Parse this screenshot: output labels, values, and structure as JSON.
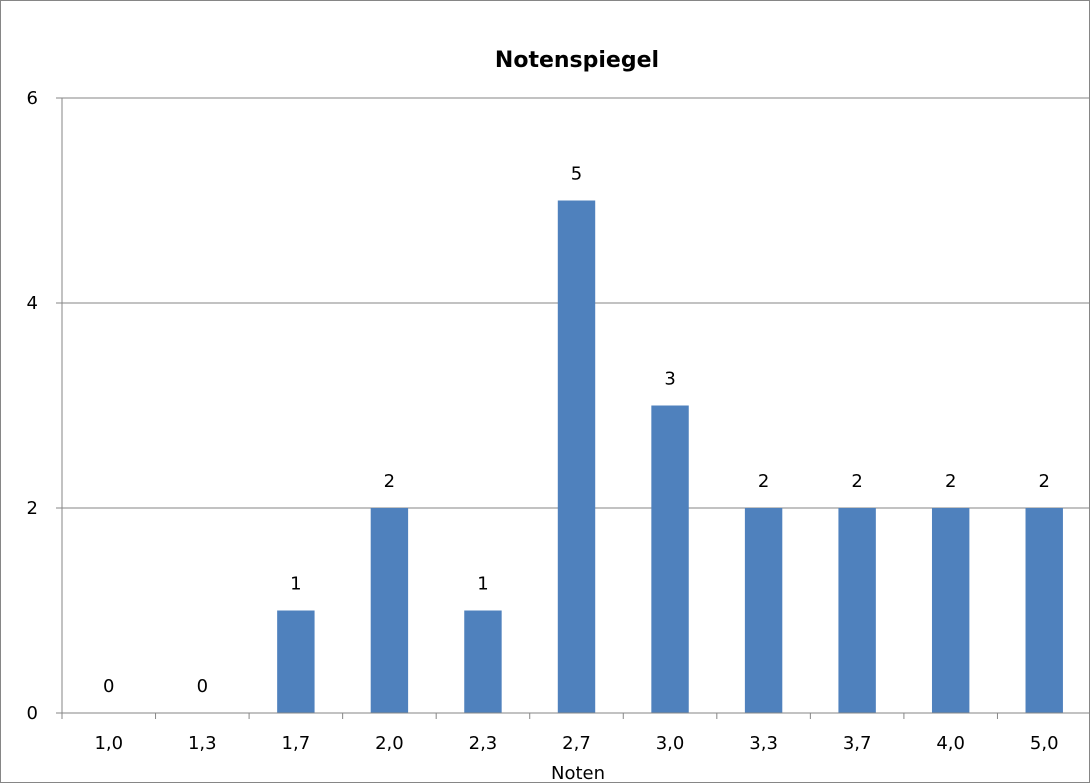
{
  "chart_data": {
    "type": "bar",
    "title": "Notenspiegel",
    "xlabel": "Noten",
    "ylabel": "",
    "categories": [
      "1,0",
      "1,3",
      "1,7",
      "2,0",
      "2,3",
      "2,7",
      "3,0",
      "3,3",
      "3,7",
      "4,0",
      "5,0"
    ],
    "values": [
      0,
      0,
      1,
      2,
      1,
      5,
      3,
      2,
      2,
      2,
      2
    ],
    "data_labels": [
      "0",
      "0",
      "1",
      "2",
      "1",
      "5",
      "3",
      "2",
      "2",
      "2",
      "2"
    ],
    "ylim": [
      0,
      6
    ],
    "yticks": [
      0,
      2,
      4,
      6
    ],
    "ytick_labels": [
      "0",
      "2",
      "4",
      "6"
    ],
    "grid": true,
    "legend": "none",
    "bar_color": "#4F81BD",
    "grid_color": "#868686"
  }
}
